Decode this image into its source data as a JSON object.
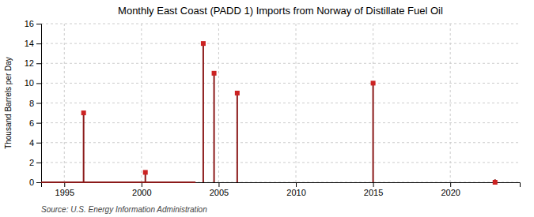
{
  "chart_data": {
    "type": "line",
    "title": "Monthly East Coast (PADD 1) Imports from Norway of Distillate Fuel Oil",
    "y_label": "Thousand Barrels per Day",
    "annotation": "Source: U.S. Energy Information Administration",
    "xlim": [
      1993.5,
      2024.5
    ],
    "ylim": [
      0,
      16
    ],
    "xticks": [
      1995,
      2000,
      2005,
      2010,
      2015,
      2020
    ],
    "yticks": [
      0,
      2,
      4,
      6,
      8,
      10,
      12,
      14,
      16
    ],
    "grid": true,
    "series": [
      {
        "type": "line",
        "color": "#8b1a1a",
        "x": [
          1993.5,
          2003.5
        ],
        "values": [
          0,
          0
        ]
      },
      {
        "type": "line",
        "color": "#8b1a1a",
        "x": [
          1996.25,
          1996.25
        ],
        "values": [
          0,
          7
        ]
      },
      {
        "type": "line",
        "color": "#8b1a1a",
        "x": [
          2000.25,
          2000.25
        ],
        "values": [
          0,
          1
        ]
      },
      {
        "type": "line",
        "color": "#8b1a1a",
        "x": [
          2004.0,
          2004.0
        ],
        "values": [
          0,
          14
        ]
      },
      {
        "type": "line",
        "color": "#8b1a1a",
        "x": [
          2004.7,
          2004.7
        ],
        "values": [
          0,
          11
        ]
      },
      {
        "type": "line",
        "color": "#8b1a1a",
        "x": [
          2006.2,
          2006.2
        ],
        "values": [
          0,
          9
        ]
      },
      {
        "type": "line",
        "color": "#8b1a1a",
        "x": [
          2015.0,
          2015.0
        ],
        "values": [
          0,
          10
        ]
      },
      {
        "type": "line",
        "color": "#8b1a1a",
        "x": [
          2022.9,
          2022.9
        ],
        "values": [
          0,
          0.3
        ]
      },
      {
        "type": "scatter",
        "marker": "square",
        "color": "#cc2222",
        "x": [
          1996.25,
          2000.25,
          2004.0,
          2004.7,
          2006.2,
          2015.0,
          2022.9
        ],
        "values": [
          7,
          1,
          14,
          11,
          9,
          10,
          0
        ]
      }
    ]
  }
}
